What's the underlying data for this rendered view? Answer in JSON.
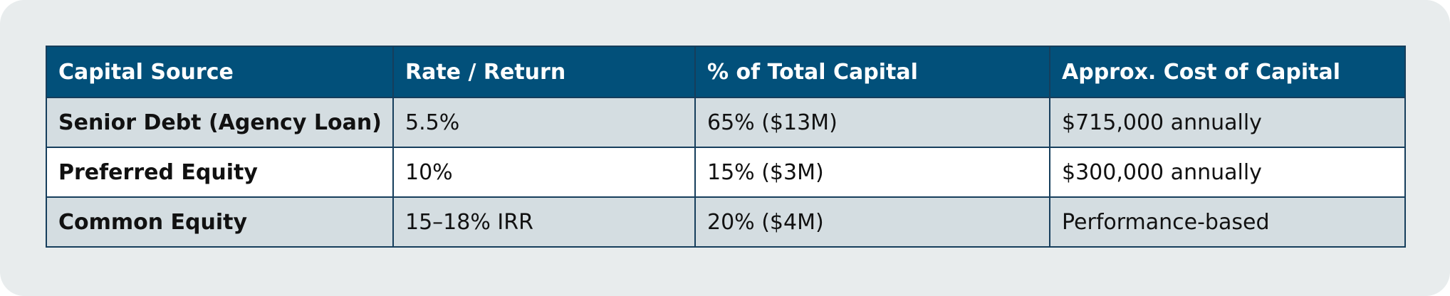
{
  "table": {
    "headers": [
      "Capital Source",
      "Rate / Return",
      "% of Total Capital",
      "Approx. Cost of Capital"
    ],
    "rows": [
      [
        "Senior Debt (Agency Loan)",
        "5.5%",
        "65% ($13M)",
        "$715,000 annually"
      ],
      [
        "Preferred Equity",
        "10%",
        "15% ($3M)",
        "$300,000 annually"
      ],
      [
        "Common Equity",
        "15–18% IRR",
        "20% ($4M)",
        "Performance-based"
      ]
    ]
  },
  "colors": {
    "header_background": "#02507a",
    "header_text": "#ffffff",
    "shaded_row": "#d4dde1",
    "plain_row": "#ffffff",
    "border": "#163e5c",
    "card_background": "#e8eced"
  }
}
